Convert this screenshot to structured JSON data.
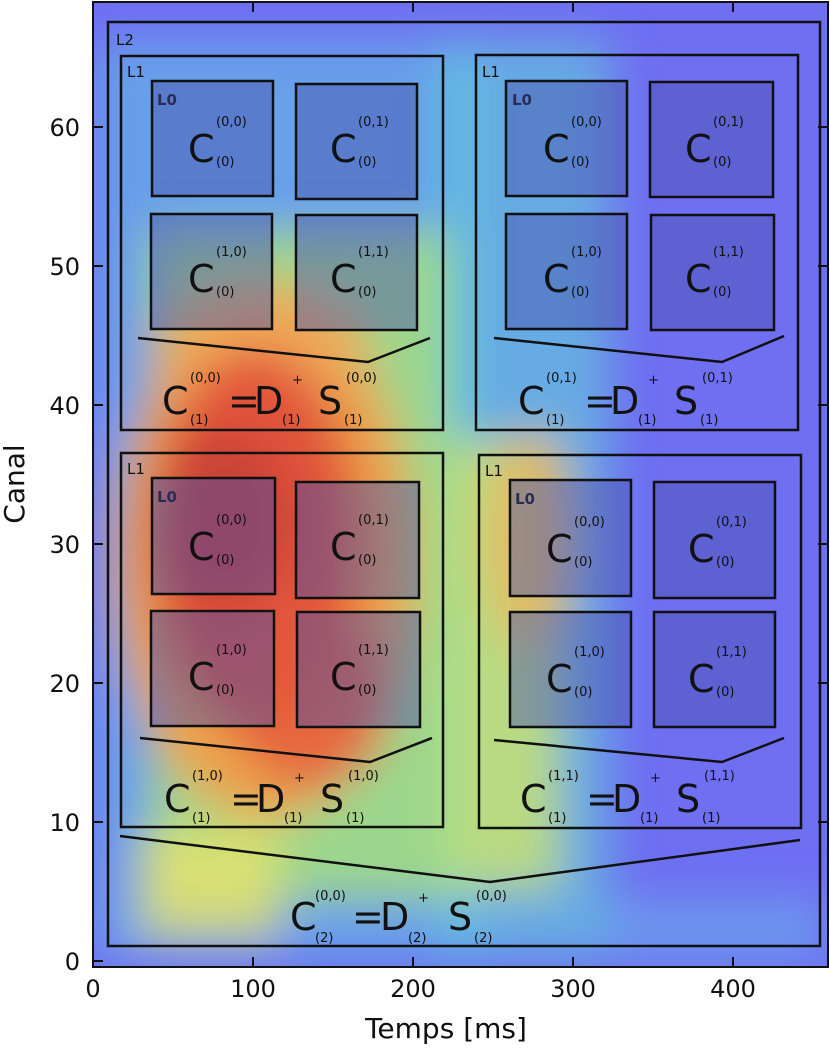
{
  "axes": {
    "xlabel": "Temps [ms]",
    "ylabel": "Canal",
    "xlim": [
      0,
      460
    ],
    "ylim": [
      0,
      68
    ],
    "xticks": [
      "0",
      "100",
      "200",
      "300",
      "400"
    ],
    "yticks": [
      "0",
      "10",
      "20",
      "30",
      "40",
      "50",
      "60"
    ]
  },
  "labels": {
    "l2": "L2",
    "l1": "L1",
    "l0": "L0"
  },
  "symbols": {
    "C": "C",
    "D": "D",
    "S": "S",
    "eq": "=",
    "plus": "+"
  },
  "indices": {
    "i00": "(0,0)",
    "i01": "(0,1)",
    "i10": "(1,0)",
    "i11": "(1,1)",
    "l0": "(0)",
    "l1": "(1)",
    "l2": "(2)"
  },
  "colors": {
    "background": "#6f6ff2",
    "frame": "#111111",
    "hot": "#d94a3a",
    "warm": "#f2e04a",
    "cool": "#52d6d0"
  }
}
